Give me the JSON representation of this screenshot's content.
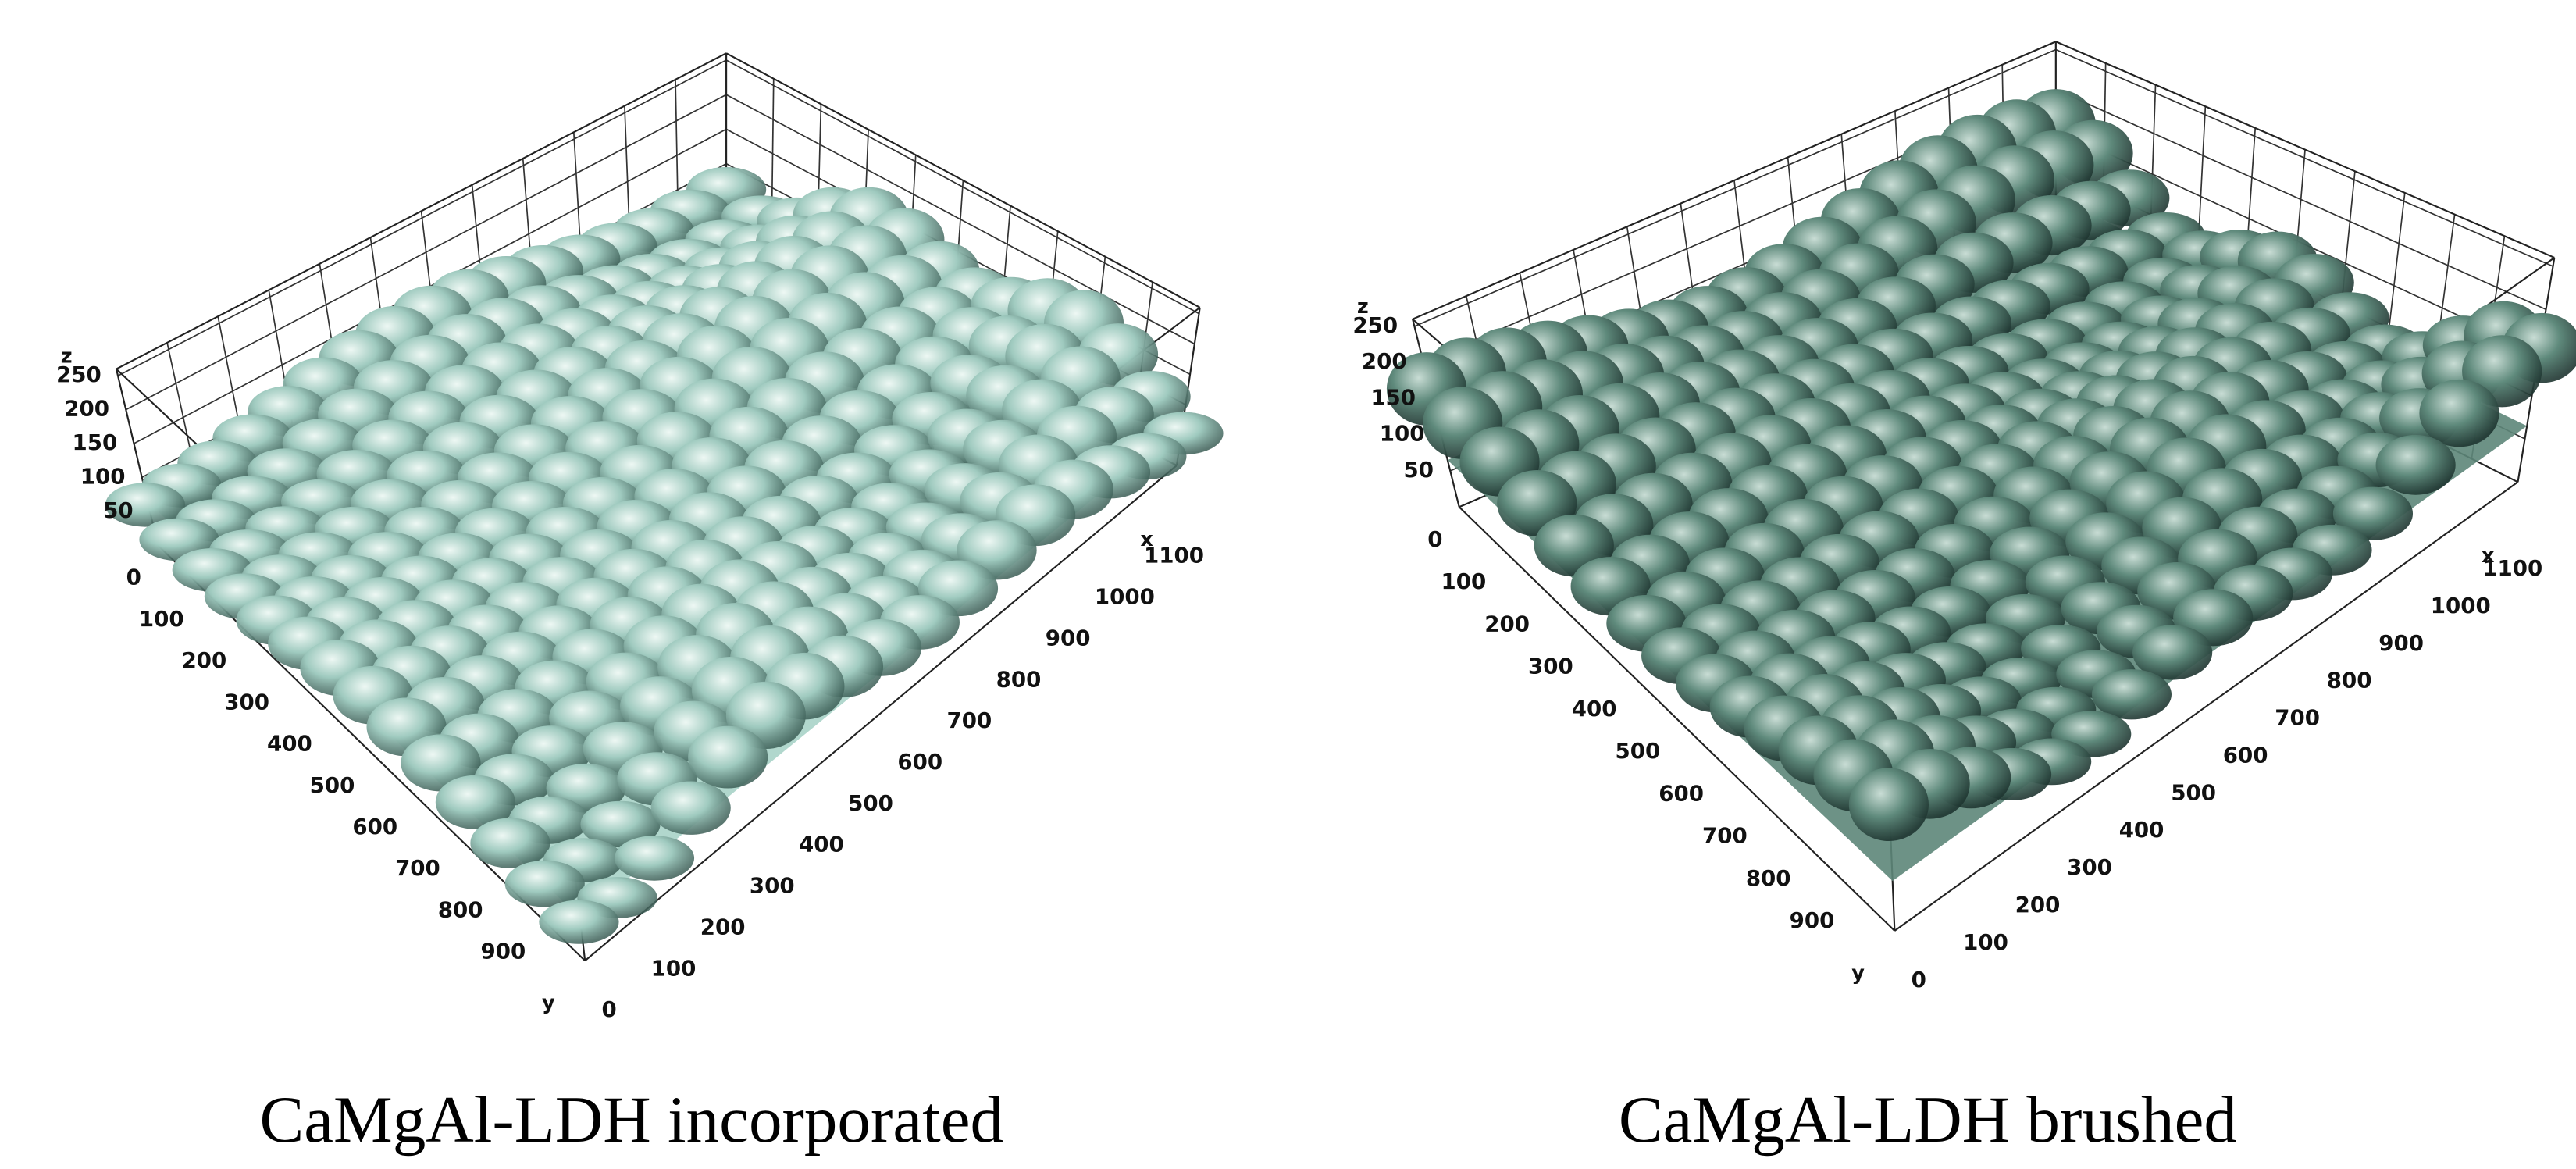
{
  "chart_data": [
    {
      "type": "surface",
      "title": "CaMgAl-LDH incorporated",
      "xlabel": "x",
      "ylabel": "y",
      "zlabel": "z",
      "xlim": [
        0,
        1200
      ],
      "ylim": [
        0,
        1000
      ],
      "zlim": [
        0,
        260
      ],
      "xticks": [
        0,
        100,
        200,
        300,
        400,
        500,
        600,
        700,
        800,
        900,
        1000,
        1100
      ],
      "yticks": [
        0,
        100,
        200,
        300,
        400,
        500,
        600,
        700,
        800,
        900
      ],
      "zticks": [
        50,
        100,
        150,
        200,
        250
      ],
      "grid": true,
      "color": "#a9d3c8"
    },
    {
      "type": "surface",
      "title": "CaMgAl-LDH brushed",
      "xlabel": "x",
      "ylabel": "y",
      "zlabel": "z",
      "xlim": [
        0,
        1200
      ],
      "ylim": [
        0,
        1000
      ],
      "zlim": [
        0,
        260
      ],
      "xticks": [
        0,
        100,
        200,
        300,
        400,
        500,
        600,
        700,
        800,
        900,
        1000,
        1100
      ],
      "yticks": [
        0,
        100,
        200,
        300,
        400,
        500,
        600,
        700,
        800,
        900
      ],
      "zticks": [
        50,
        100,
        150,
        200,
        250
      ],
      "grid": true,
      "color": "#5d8679"
    }
  ]
}
